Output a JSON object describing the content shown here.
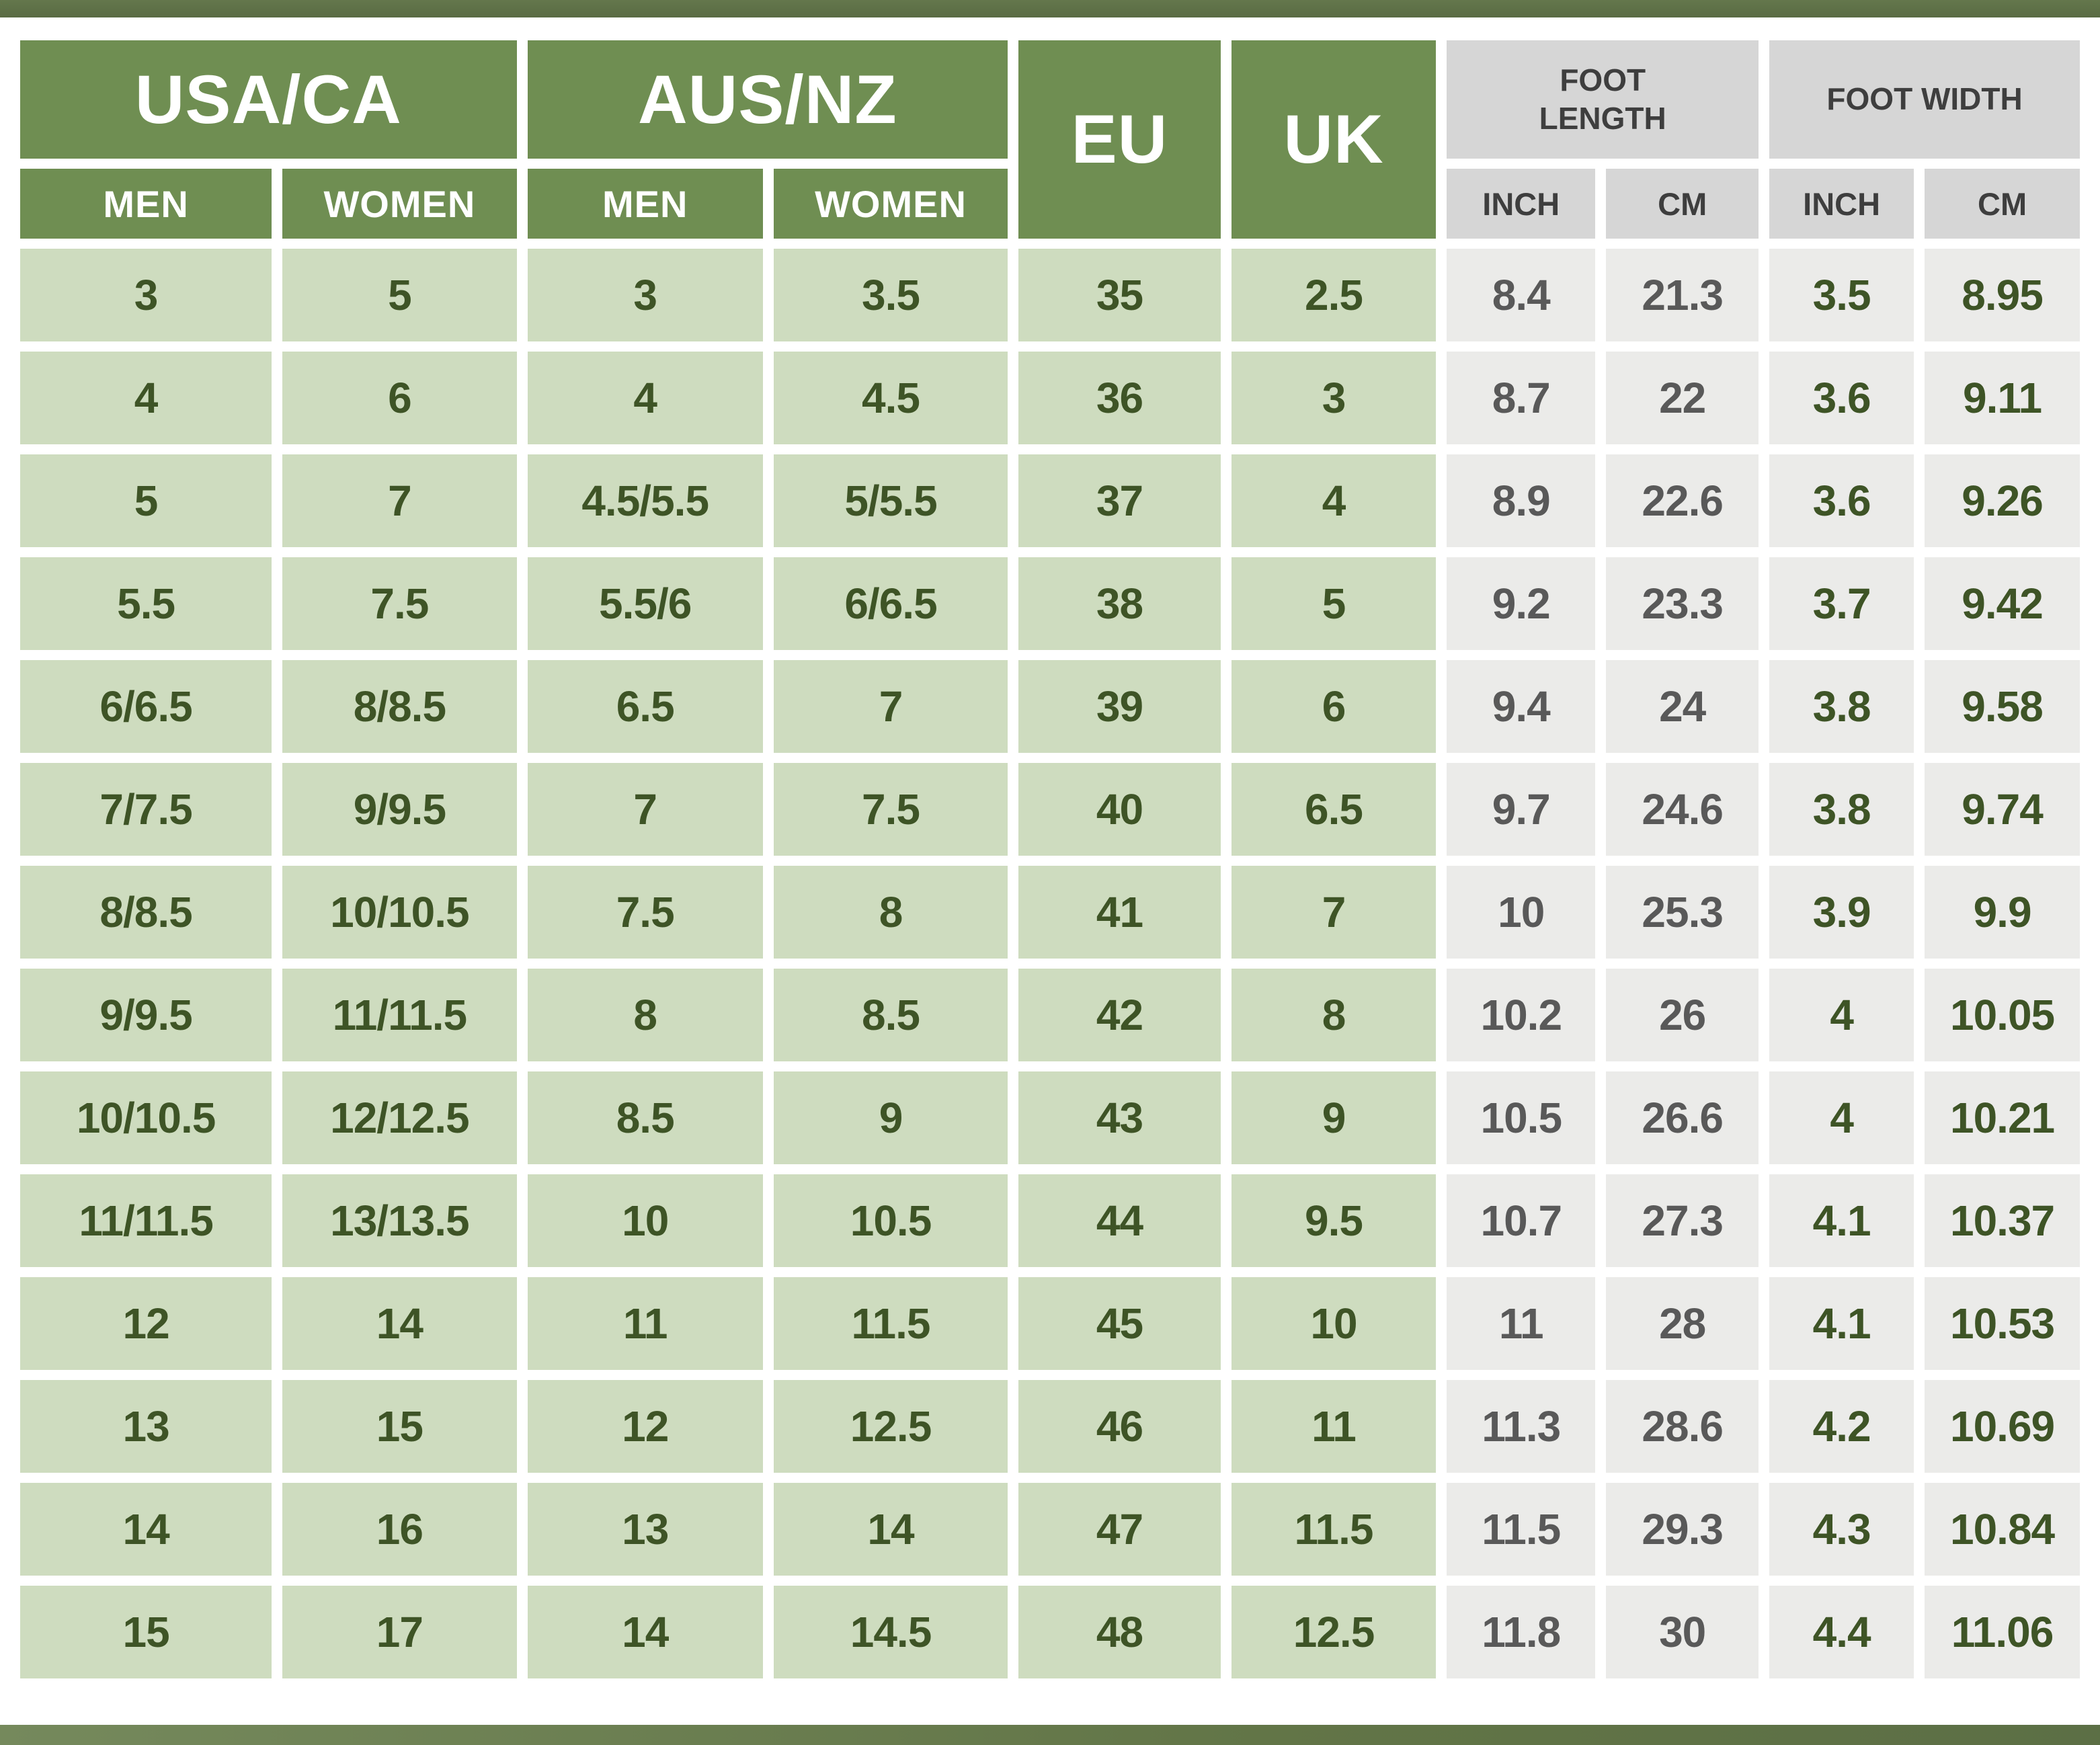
{
  "colors": {
    "bar_green_dark": "#596b43",
    "header_green": "#6f8e52",
    "header_gray": "#d6d6d6",
    "cell_green": "#cedcbf",
    "cell_gray": "#ebebe9",
    "text_green": "#3e5426",
    "text_gray": "#595959",
    "text_header_gray": "#3e3e3e",
    "text_white": "#ffffff"
  },
  "header": {
    "usa_ca": "USA/CA",
    "aus_nz": "AUS/NZ",
    "eu": "EU",
    "uk": "UK",
    "foot_length": "FOOT LENGTH",
    "foot_width": "FOOT WIDTH",
    "men": "MEN",
    "women": "WOMEN",
    "inch": "INCH",
    "cm": "CM"
  },
  "chart_data": {
    "type": "table",
    "columns": [
      "USA/CA MEN",
      "USA/CA WOMEN",
      "AUS/NZ MEN",
      "AUS/NZ WOMEN",
      "EU",
      "UK",
      "FOOT LENGTH INCH",
      "FOOT LENGTH CM",
      "FOOT WIDTH INCH",
      "FOOT WIDTH CM"
    ],
    "rows": [
      [
        "3",
        "5",
        "3",
        "3.5",
        "35",
        "2.5",
        "8.4",
        "21.3",
        "3.5",
        "8.95"
      ],
      [
        "4",
        "6",
        "4",
        "4.5",
        "36",
        "3",
        "8.7",
        "22",
        "3.6",
        "9.11"
      ],
      [
        "5",
        "7",
        "4.5/5.5",
        "5/5.5",
        "37",
        "4",
        "8.9",
        "22.6",
        "3.6",
        "9.26"
      ],
      [
        "5.5",
        "7.5",
        "5.5/6",
        "6/6.5",
        "38",
        "5",
        "9.2",
        "23.3",
        "3.7",
        "9.42"
      ],
      [
        "6/6.5",
        "8/8.5",
        "6.5",
        "7",
        "39",
        "6",
        "9.4",
        "24",
        "3.8",
        "9.58"
      ],
      [
        "7/7.5",
        "9/9.5",
        "7",
        "7.5",
        "40",
        "6.5",
        "9.7",
        "24.6",
        "3.8",
        "9.74"
      ],
      [
        "8/8.5",
        "10/10.5",
        "7.5",
        "8",
        "41",
        "7",
        "10",
        "25.3",
        "3.9",
        "9.9"
      ],
      [
        "9/9.5",
        "11/11.5",
        "8",
        "8.5",
        "42",
        "8",
        "10.2",
        "26",
        "4",
        "10.05"
      ],
      [
        "10/10.5",
        "12/12.5",
        "8.5",
        "9",
        "43",
        "9",
        "10.5",
        "26.6",
        "4",
        "10.21"
      ],
      [
        "11/11.5",
        "13/13.5",
        "10",
        "10.5",
        "44",
        "9.5",
        "10.7",
        "27.3",
        "4.1",
        "10.37"
      ],
      [
        "12",
        "14",
        "11",
        "11.5",
        "45",
        "10",
        "11",
        "28",
        "4.1",
        "10.53"
      ],
      [
        "13",
        "15",
        "12",
        "12.5",
        "46",
        "11",
        "11.3",
        "28.6",
        "4.2",
        "10.69"
      ],
      [
        "14",
        "16",
        "13",
        "14",
        "47",
        "11.5",
        "11.5",
        "29.3",
        "4.3",
        "10.84"
      ],
      [
        "15",
        "17",
        "14",
        "14.5",
        "48",
        "12.5",
        "11.8",
        "30",
        "4.4",
        "11.06"
      ]
    ]
  }
}
